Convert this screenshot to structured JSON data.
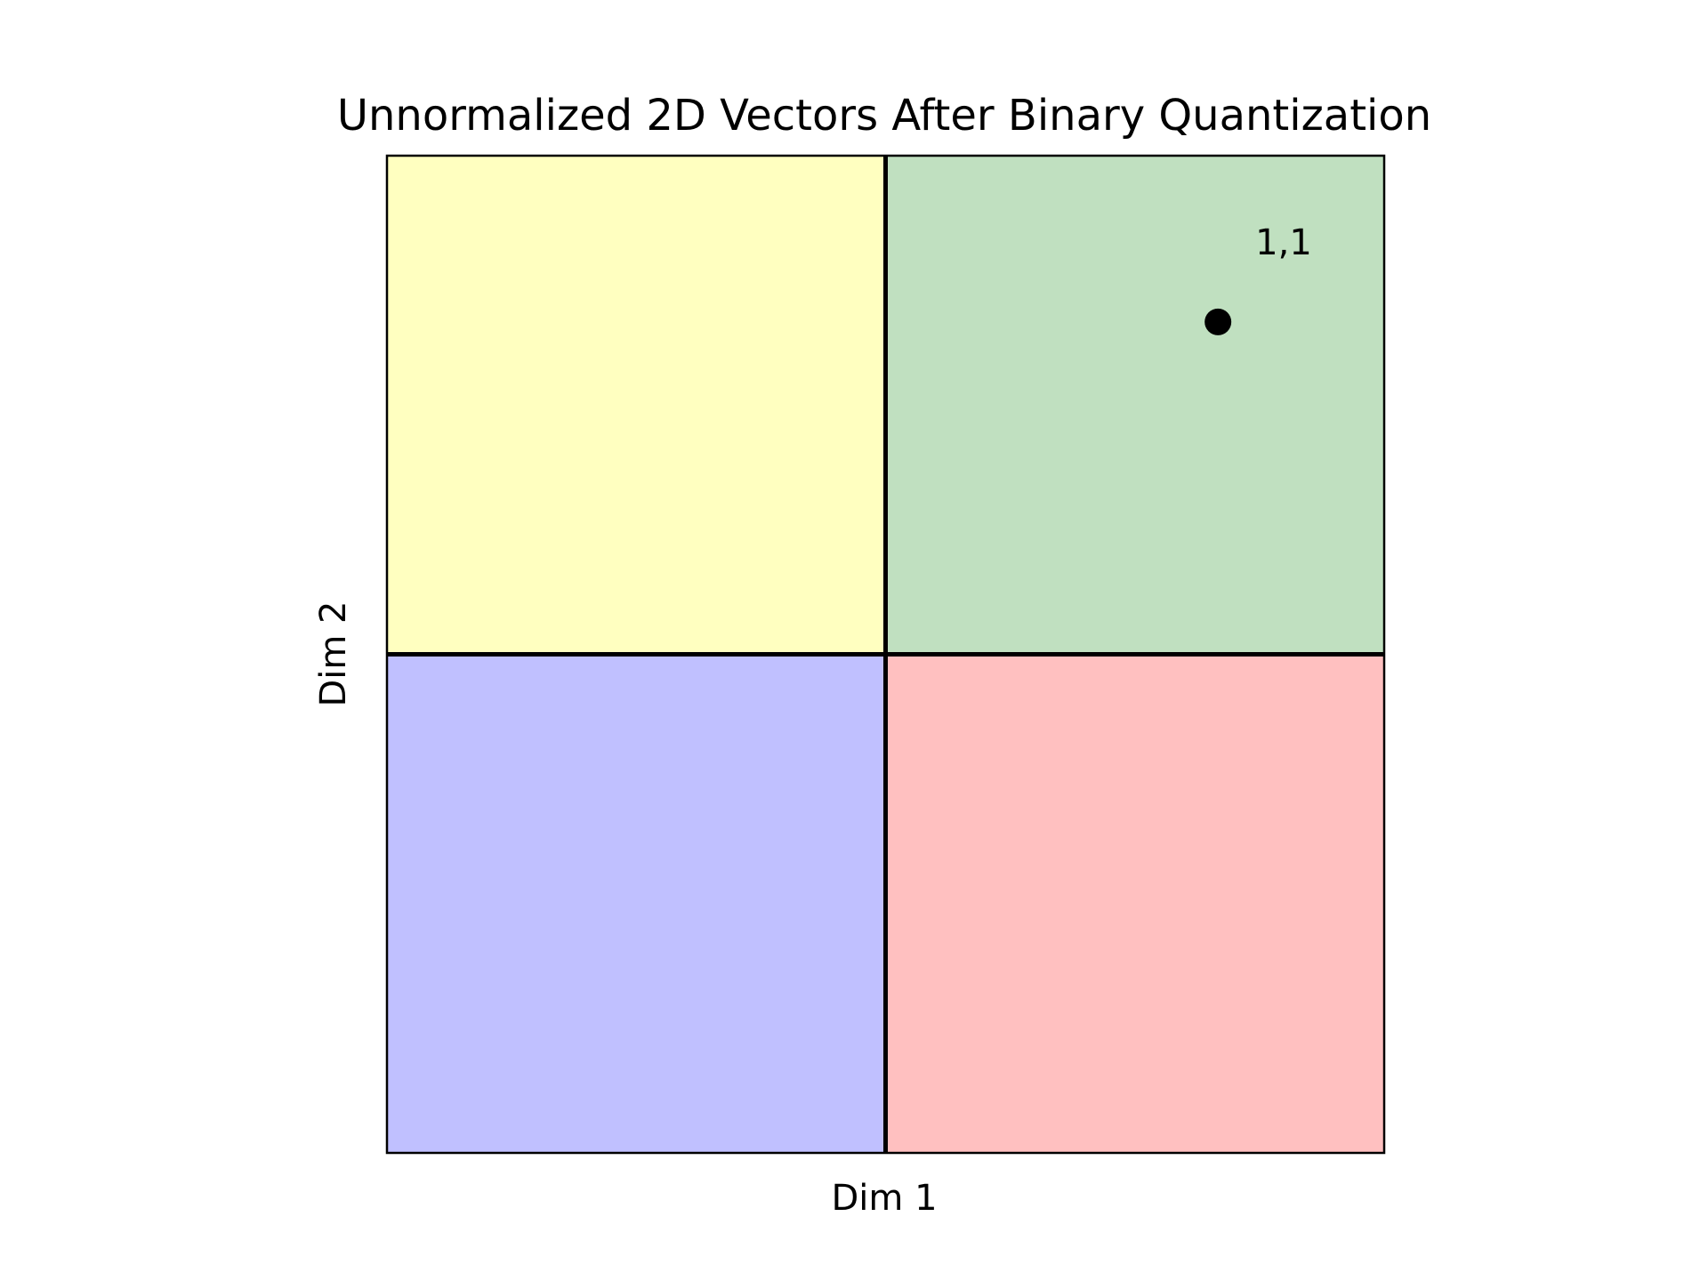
{
  "chart_data": {
    "type": "scatter",
    "title": "Unnormalized 2D Vectors After Binary Quantization",
    "xlabel": "Dim 1",
    "ylabel": "Dim 2",
    "xlim": [
      -1.5,
      1.5
    ],
    "ylim": [
      -1.5,
      1.5
    ],
    "grid": false,
    "ticks_visible": false,
    "quadrant_dividers": {
      "x": 0,
      "y": 0
    },
    "quadrants": [
      {
        "x_range": [
          -1.5,
          0
        ],
        "y_range": [
          0,
          1.5
        ],
        "color": "#ffffc0"
      },
      {
        "x_range": [
          0,
          1.5
        ],
        "y_range": [
          0,
          1.5
        ],
        "color": "#c0e0c0"
      },
      {
        "x_range": [
          -1.5,
          0
        ],
        "y_range": [
          -1.5,
          0
        ],
        "color": "#c0c0ff"
      },
      {
        "x_range": [
          0,
          1.5
        ],
        "y_range": [
          -1.5,
          0
        ],
        "color": "#ffc0c0"
      }
    ],
    "points": [
      {
        "x": 1,
        "y": 1,
        "label": "1,1",
        "color": "#000000"
      }
    ]
  }
}
